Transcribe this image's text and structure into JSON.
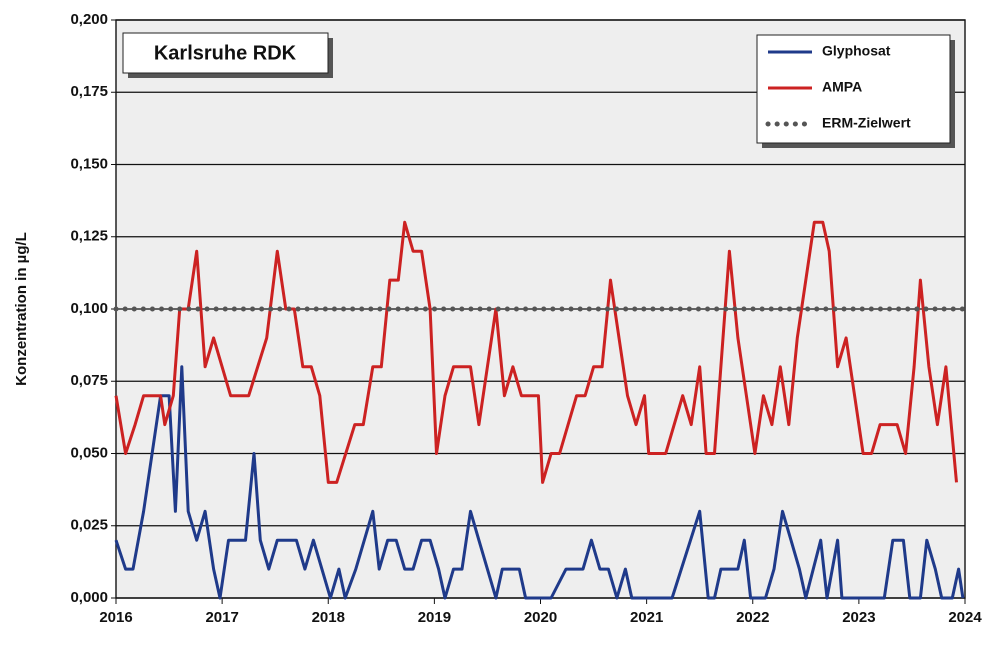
{
  "chart_data": {
    "type": "line",
    "title": "Karlsruhe RDK",
    "y_label": "Konzentration in µg/L",
    "xlim": [
      2016,
      2024
    ],
    "xticks": [
      2016,
      2017,
      2018,
      2019,
      2020,
      2021,
      2022,
      2023,
      2024
    ],
    "ylim": [
      0,
      0.2
    ],
    "yticks": [
      {
        "value": 0,
        "label": "0,000"
      },
      {
        "value": 0.025,
        "label": "0,025"
      },
      {
        "value": 0.05,
        "label": "0,050"
      },
      {
        "value": 0.075,
        "label": "0,075"
      },
      {
        "value": 0.1,
        "label": "0,100"
      },
      {
        "value": 0.125,
        "label": "0,125"
      },
      {
        "value": 0.15,
        "label": "0,150"
      },
      {
        "value": 0.175,
        "label": "0,175"
      },
      {
        "value": 0.2,
        "label": "0,200"
      }
    ],
    "grid": true,
    "legend": "upper right",
    "series": [
      {
        "name": "Glyphosat",
        "color": "#1f3a8a",
        "style": "solid",
        "x": [
          2016.0,
          2016.09,
          2016.16,
          2016.26,
          2016.34,
          2016.42,
          2016.5,
          2016.56,
          2016.62,
          2016.68,
          2016.76,
          2016.84,
          2016.92,
          2016.98,
          2017.06,
          2017.22,
          2017.3,
          2017.36,
          2017.44,
          2017.52,
          2017.7,
          2017.78,
          2017.86,
          2017.94,
          2018.02,
          2018.1,
          2018.16,
          2018.26,
          2018.34,
          2018.42,
          2018.48,
          2018.56,
          2018.64,
          2018.72,
          2018.8,
          2018.88,
          2018.96,
          2019.04,
          2019.1,
          2019.18,
          2019.26,
          2019.34,
          2019.42,
          2019.5,
          2019.58,
          2019.64,
          2019.8,
          2019.86,
          2020.1,
          2020.24,
          2020.4,
          2020.48,
          2020.56,
          2020.64,
          2020.72,
          2020.8,
          2020.86,
          2021.24,
          2021.5,
          2021.58,
          2021.64,
          2021.7,
          2021.86,
          2021.92,
          2021.98,
          2022.12,
          2022.2,
          2022.28,
          2022.36,
          2022.44,
          2022.5,
          2022.64,
          2022.7,
          2022.8,
          2022.84,
          2023.24,
          2023.32,
          2023.42,
          2023.48,
          2023.58,
          2023.64,
          2023.72,
          2023.78,
          2023.88,
          2023.94,
          2023.98
        ],
        "values": [
          0.02,
          0.01,
          0.01,
          0.03,
          0.05,
          0.07,
          0.07,
          0.03,
          0.08,
          0.03,
          0.02,
          0.03,
          0.01,
          0,
          0.02,
          0.02,
          0.05,
          0.02,
          0.01,
          0.02,
          0.02,
          0.01,
          0.02,
          0.01,
          0,
          0.01,
          0,
          0.01,
          0.02,
          0.03,
          0.01,
          0.02,
          0.02,
          0.01,
          0.01,
          0.02,
          0.02,
          0.01,
          0,
          0.01,
          0.01,
          0.03,
          0.02,
          0.01,
          0,
          0.01,
          0.01,
          0,
          0,
          0.01,
          0.01,
          0.02,
          0.01,
          0.01,
          0,
          0.01,
          0,
          0,
          0.03,
          0,
          0,
          0.01,
          0.01,
          0.02,
          0,
          0,
          0.01,
          0.03,
          0.02,
          0.01,
          0,
          0.02,
          0,
          0.02,
          0,
          0,
          0.02,
          0.02,
          0,
          0,
          0.02,
          0.01,
          0,
          0,
          0.01,
          0
        ]
      },
      {
        "name": "AMPA",
        "color": "#cc2222",
        "style": "solid",
        "x": [
          2016.0,
          2016.09,
          2016.18,
          2016.26,
          2016.42,
          2016.46,
          2016.54,
          2016.6,
          2016.68,
          2016.76,
          2016.84,
          2016.92,
          2017.0,
          2017.08,
          2017.25,
          2017.42,
          2017.52,
          2017.6,
          2017.68,
          2017.76,
          2017.84,
          2017.92,
          2018.0,
          2018.08,
          2018.25,
          2018.33,
          2018.42,
          2018.5,
          2018.58,
          2018.66,
          2018.72,
          2018.8,
          2018.88,
          2018.96,
          2019.02,
          2019.1,
          2019.18,
          2019.34,
          2019.42,
          2019.5,
          2019.58,
          2019.66,
          2019.74,
          2019.82,
          2019.98,
          2020.02,
          2020.1,
          2020.18,
          2020.34,
          2020.42,
          2020.5,
          2020.58,
          2020.66,
          2020.74,
          2020.82,
          2020.9,
          2020.98,
          2021.02,
          2021.18,
          2021.26,
          2021.34,
          2021.42,
          2021.5,
          2021.56,
          2021.64,
          2021.72,
          2021.78,
          2021.86,
          2021.94,
          2022.02,
          2022.1,
          2022.18,
          2022.26,
          2022.34,
          2022.42,
          2022.5,
          2022.58,
          2022.66,
          2022.72,
          2022.8,
          2022.88,
          2022.96,
          2023.04,
          2023.12,
          2023.2,
          2023.36,
          2023.44,
          2023.52,
          2023.58,
          2023.66,
          2023.74,
          2023.82,
          2023.92
        ],
        "values": [
          0.07,
          0.05,
          0.06,
          0.07,
          0.07,
          0.06,
          0.07,
          0.1,
          0.1,
          0.12,
          0.08,
          0.09,
          0.08,
          0.07,
          0.07,
          0.09,
          0.12,
          0.1,
          0.1,
          0.08,
          0.08,
          0.07,
          0.04,
          0.04,
          0.06,
          0.06,
          0.08,
          0.08,
          0.11,
          0.11,
          0.13,
          0.12,
          0.12,
          0.1,
          0.05,
          0.07,
          0.08,
          0.08,
          0.06,
          0.08,
          0.1,
          0.07,
          0.08,
          0.07,
          0.07,
          0.04,
          0.05,
          0.05,
          0.07,
          0.07,
          0.08,
          0.08,
          0.11,
          0.09,
          0.07,
          0.06,
          0.07,
          0.05,
          0.05,
          0.06,
          0.07,
          0.06,
          0.08,
          0.05,
          0.05,
          0.09,
          0.12,
          0.09,
          0.07,
          0.05,
          0.07,
          0.06,
          0.08,
          0.06,
          0.09,
          0.11,
          0.13,
          0.13,
          0.12,
          0.08,
          0.09,
          0.07,
          0.05,
          0.05,
          0.06,
          0.06,
          0.05,
          0.08,
          0.11,
          0.08,
          0.06,
          0.08,
          0.04
        ]
      },
      {
        "name": "ERM-Zielwert",
        "color": "#555555",
        "style": "dotted",
        "x": [
          2016,
          2024
        ],
        "values": [
          0.1,
          0.1
        ]
      }
    ]
  }
}
